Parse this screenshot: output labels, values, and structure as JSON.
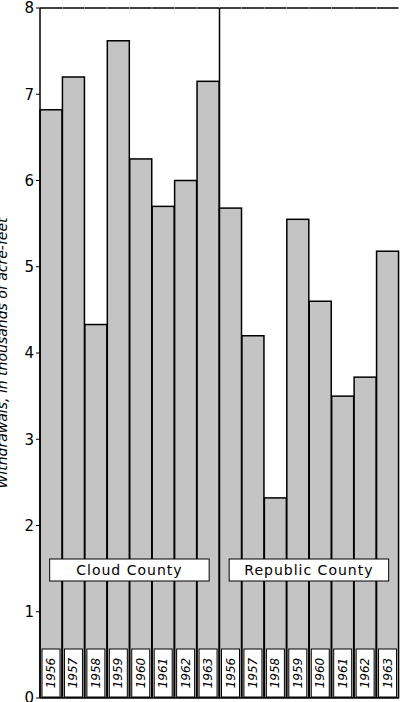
{
  "chart_data": {
    "type": "bar",
    "y_label": "Withdrawals, in thousands of acre-feet",
    "categories": [
      "1956",
      "1957",
      "1958",
      "1959",
      "1960",
      "1961",
      "1962",
      "1963"
    ],
    "series": [
      {
        "name": "Cloud County",
        "values": [
          6.82,
          7.2,
          4.33,
          7.62,
          6.25,
          5.7,
          6.0,
          7.15
        ]
      },
      {
        "name": "Republic County",
        "values": [
          5.68,
          4.2,
          2.32,
          5.55,
          4.6,
          3.5,
          3.72,
          5.18
        ]
      }
    ],
    "color": "#c4c4c4",
    "ylim": [
      0,
      8
    ],
    "yticks": [
      0,
      1,
      2,
      3,
      4,
      5,
      6,
      7,
      8
    ],
    "grid": false
  }
}
